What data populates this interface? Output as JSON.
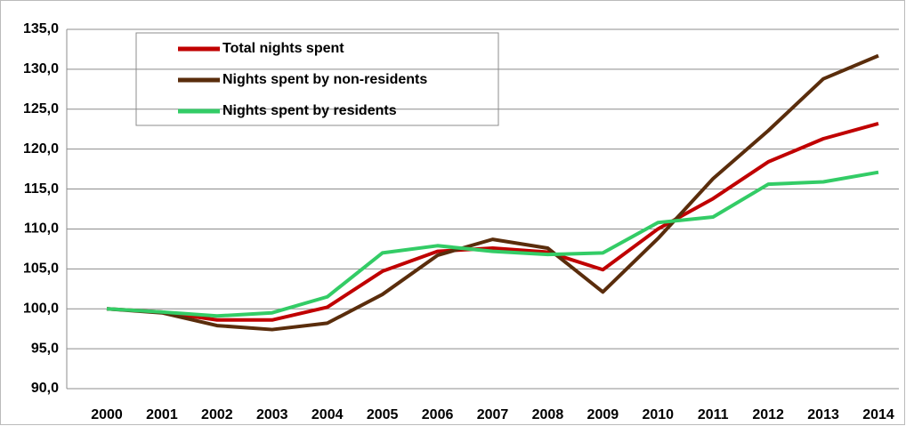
{
  "chart_data": {
    "type": "line",
    "categories": [
      "2000",
      "2001",
      "2002",
      "2003",
      "2004",
      "2005",
      "2006",
      "2007",
      "2008",
      "2009",
      "2010",
      "2011",
      "2012",
      "2013",
      "2014"
    ],
    "series": [
      {
        "name": "Total nights spent",
        "color": "#c00000",
        "values": [
          100.0,
          99.6,
          98.6,
          98.6,
          100.2,
          104.7,
          107.2,
          107.6,
          107.1,
          104.9,
          110.0,
          113.8,
          118.4,
          121.3,
          123.2
        ]
      },
      {
        "name": "Nights spent by non-residents",
        "color": "#5a2d0c",
        "values": [
          100.0,
          99.5,
          97.9,
          97.4,
          98.2,
          101.8,
          106.7,
          108.7,
          107.6,
          102.1,
          108.8,
          116.3,
          122.3,
          128.8,
          131.7
        ]
      },
      {
        "name": "Nights spent by residents",
        "color": "#33cc66",
        "values": [
          100.0,
          99.6,
          99.1,
          99.5,
          101.5,
          107.0,
          107.9,
          107.2,
          106.8,
          107.0,
          110.8,
          111.5,
          115.6,
          115.9,
          117.1
        ]
      }
    ],
    "ylim": [
      90,
      135
    ],
    "yticks": [
      {
        "value": 90,
        "label": "90,0"
      },
      {
        "value": 95,
        "label": "95,0"
      },
      {
        "value": 100,
        "label": "100,0"
      },
      {
        "value": 105,
        "label": "105,0"
      },
      {
        "value": 110,
        "label": "110,0"
      },
      {
        "value": 115,
        "label": "115,0"
      },
      {
        "value": 120,
        "label": "120,0"
      },
      {
        "value": 125,
        "label": "125,0"
      },
      {
        "value": 130,
        "label": "130,0"
      },
      {
        "value": 135,
        "label": "135,0"
      }
    ],
    "grid": true
  }
}
